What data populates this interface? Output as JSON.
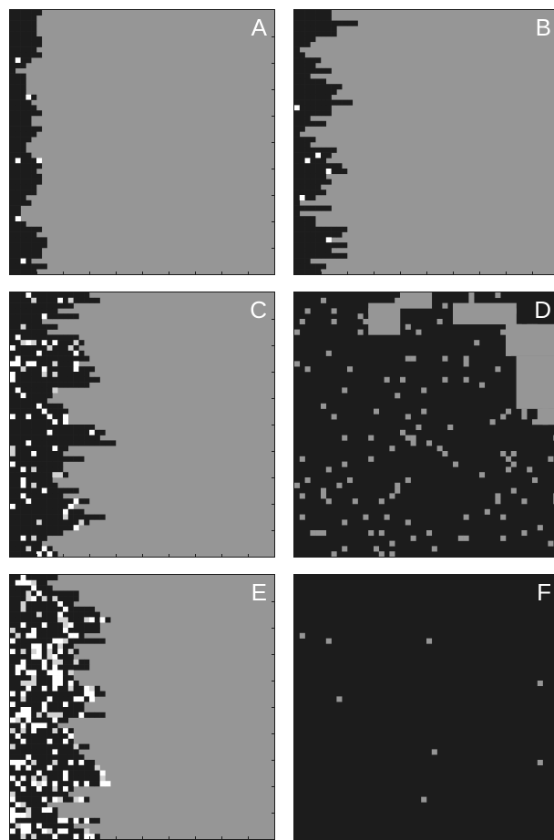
{
  "colors": {
    "background": "#ffffff",
    "grey_state": "#969696",
    "dark_state": "#1c1c1c",
    "light_state": "#d2d2d2",
    "white_state": "#ffffff",
    "label": "#ffffff",
    "tick": "#1c1c1c"
  },
  "grid": {
    "rows": 50,
    "cols": 50
  },
  "panels": [
    {
      "id": "a",
      "label": "A",
      "front": 0.08,
      "roughness": 0.03,
      "white": 0.03,
      "light": 0.0,
      "covered": false,
      "greyInDark": 0.0
    },
    {
      "id": "b",
      "label": "B",
      "front": 0.11,
      "roughness": 0.06,
      "white": 0.03,
      "light": 0.0,
      "covered": false,
      "greyInDark": 0.0
    },
    {
      "id": "c",
      "label": "C",
      "front": 0.24,
      "roughness": 0.08,
      "white": 0.1,
      "light": 0.05,
      "covered": false,
      "greyInDark": 0.0
    },
    {
      "id": "d",
      "label": "D",
      "front": 0.0,
      "roughness": 0.0,
      "white": 0.0,
      "light": 0.0,
      "covered": true,
      "greyInDark": 0.05
    },
    {
      "id": "e",
      "label": "E",
      "front": 0.28,
      "roughness": 0.07,
      "white": 0.22,
      "light": 0.1,
      "covered": false,
      "greyInDark": 0.0
    },
    {
      "id": "f",
      "label": "F",
      "front": 0.0,
      "roughness": 0.0,
      "white": 0.0,
      "light": 0.0,
      "covered": true,
      "greyInDark": 0.003
    }
  ]
}
